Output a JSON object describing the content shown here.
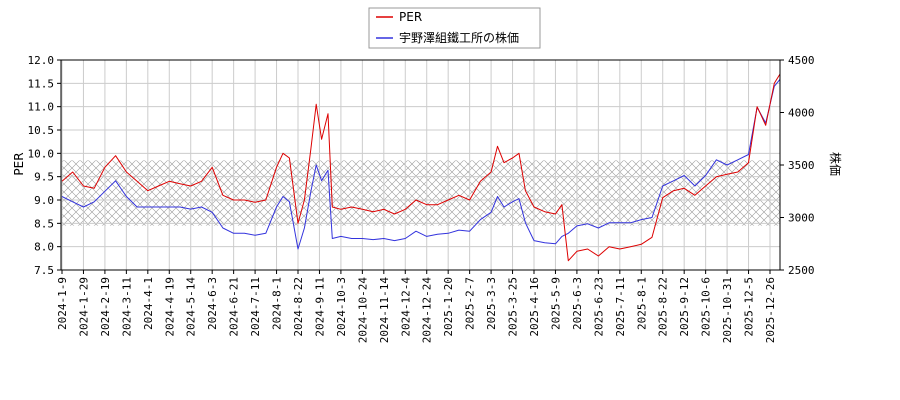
{
  "chart_data": {
    "type": "line",
    "legend": {
      "placement": "top-center",
      "entries": [
        "PER",
        "宇野澤組鐵工所の株価"
      ]
    },
    "colors": {
      "per": "#dd0000",
      "price": "#3333dd",
      "band_hatch": "#999999"
    },
    "y_left": {
      "label": "PER",
      "lim": [
        7.5,
        12.0
      ],
      "ticks": [
        "7.5",
        "8.0",
        "8.5",
        "9.0",
        "9.5",
        "10.0",
        "10.5",
        "11.0",
        "11.5",
        "12.0"
      ]
    },
    "y_right": {
      "label": "株価",
      "lim": [
        2500,
        4500
      ],
      "ticks": [
        "2500",
        "3000",
        "3500",
        "4000",
        "4500"
      ]
    },
    "x_ticks": [
      "2024-1-9",
      "2024-1-29",
      "2024-2-19",
      "2024-3-11",
      "2024-4-1",
      "2024-4-19",
      "2024-5-14",
      "2024-6-3",
      "2024-6-21",
      "2024-7-11",
      "2024-8-1",
      "2024-8-22",
      "2024-9-11",
      "2024-10-3",
      "2024-10-24",
      "2024-11-14",
      "2024-12-4",
      "2024-12-24",
      "2025-1-20",
      "2025-2-7",
      "2025-3-3",
      "2025-3-25",
      "2025-4-16",
      "2025-5-9",
      "2025-6-3",
      "2025-6-23",
      "2025-7-11",
      "2025-8-1",
      "2025-8-22",
      "2025-9-12",
      "2025-10-6",
      "2025-10-31",
      "2025-12-5",
      "2025-12-26"
    ],
    "per_band": [
      8.45,
      9.85
    ],
    "grid": true,
    "series": [
      {
        "name": "PER",
        "axis": "left",
        "points": [
          [
            0,
            9.4
          ],
          [
            0.5,
            9.6
          ],
          [
            1,
            9.3
          ],
          [
            1.5,
            9.25
          ],
          [
            2,
            9.7
          ],
          [
            2.5,
            9.95
          ],
          [
            3,
            9.6
          ],
          [
            3.5,
            9.4
          ],
          [
            4,
            9.2
          ],
          [
            4.5,
            9.3
          ],
          [
            5,
            9.4
          ],
          [
            5.5,
            9.35
          ],
          [
            6,
            9.3
          ],
          [
            6.5,
            9.4
          ],
          [
            7,
            9.7
          ],
          [
            7.5,
            9.1
          ],
          [
            8,
            9.0
          ],
          [
            8.5,
            9.0
          ],
          [
            9,
            8.95
          ],
          [
            9.5,
            9.0
          ],
          [
            10,
            9.7
          ],
          [
            10.3,
            10.0
          ],
          [
            10.6,
            9.9
          ],
          [
            11,
            8.5
          ],
          [
            11.3,
            9.0
          ],
          [
            11.6,
            10.1
          ],
          [
            11.85,
            11.05
          ],
          [
            12.1,
            10.3
          ],
          [
            12.4,
            10.85
          ],
          [
            12.6,
            8.85
          ],
          [
            13,
            8.8
          ],
          [
            13.5,
            8.85
          ],
          [
            14,
            8.8
          ],
          [
            14.5,
            8.75
          ],
          [
            15,
            8.8
          ],
          [
            15.5,
            8.7
          ],
          [
            16,
            8.8
          ],
          [
            16.5,
            9.0
          ],
          [
            17,
            8.9
          ],
          [
            17.5,
            8.9
          ],
          [
            18,
            9.0
          ],
          [
            18.5,
            9.1
          ],
          [
            19,
            9.0
          ],
          [
            19.5,
            9.4
          ],
          [
            20,
            9.6
          ],
          [
            20.3,
            10.15
          ],
          [
            20.6,
            9.8
          ],
          [
            21,
            9.9
          ],
          [
            21.3,
            10.0
          ],
          [
            21.6,
            9.2
          ],
          [
            22,
            8.85
          ],
          [
            22.5,
            8.75
          ],
          [
            23,
            8.7
          ],
          [
            23.3,
            8.9
          ],
          [
            23.6,
            7.7
          ],
          [
            24,
            7.9
          ],
          [
            24.5,
            7.95
          ],
          [
            25,
            7.8
          ],
          [
            25.5,
            8.0
          ],
          [
            26,
            7.95
          ],
          [
            26.5,
            8.0
          ],
          [
            27,
            8.05
          ],
          [
            27.5,
            8.2
          ],
          [
            28,
            9.05
          ],
          [
            28.5,
            9.2
          ],
          [
            29,
            9.25
          ],
          [
            29.5,
            9.1
          ],
          [
            30,
            9.3
          ],
          [
            30.5,
            9.5
          ],
          [
            31,
            9.55
          ],
          [
            31.5,
            9.6
          ],
          [
            32,
            9.8
          ],
          [
            32.4,
            11.0
          ],
          [
            32.8,
            10.6
          ],
          [
            33.2,
            11.5
          ],
          [
            33.6,
            11.8
          ]
        ]
      },
      {
        "name": "宇野澤組鐵工所の株価",
        "axis": "right",
        "points": [
          [
            0,
            3200
          ],
          [
            0.5,
            3150
          ],
          [
            1,
            3100
          ],
          [
            1.5,
            3150
          ],
          [
            2,
            3250
          ],
          [
            2.5,
            3350
          ],
          [
            3,
            3200
          ],
          [
            3.5,
            3100
          ],
          [
            4,
            3100
          ],
          [
            4.5,
            3100
          ],
          [
            5,
            3100
          ],
          [
            5.5,
            3100
          ],
          [
            6,
            3080
          ],
          [
            6.5,
            3100
          ],
          [
            7,
            3050
          ],
          [
            7.5,
            2900
          ],
          [
            8,
            2850
          ],
          [
            8.5,
            2850
          ],
          [
            9,
            2830
          ],
          [
            9.5,
            2850
          ],
          [
            10,
            3100
          ],
          [
            10.3,
            3200
          ],
          [
            10.6,
            3150
          ],
          [
            11,
            2700
          ],
          [
            11.3,
            2900
          ],
          [
            11.6,
            3250
          ],
          [
            11.85,
            3500
          ],
          [
            12.1,
            3350
          ],
          [
            12.4,
            3450
          ],
          [
            12.6,
            2800
          ],
          [
            13,
            2820
          ],
          [
            13.5,
            2800
          ],
          [
            14,
            2800
          ],
          [
            14.5,
            2790
          ],
          [
            15,
            2800
          ],
          [
            15.5,
            2780
          ],
          [
            16,
            2800
          ],
          [
            16.5,
            2870
          ],
          [
            17,
            2820
          ],
          [
            17.5,
            2840
          ],
          [
            18,
            2850
          ],
          [
            18.5,
            2880
          ],
          [
            19,
            2870
          ],
          [
            19.5,
            2980
          ],
          [
            20,
            3050
          ],
          [
            20.3,
            3200
          ],
          [
            20.6,
            3100
          ],
          [
            21,
            3150
          ],
          [
            21.3,
            3180
          ],
          [
            21.6,
            2950
          ],
          [
            22,
            2780
          ],
          [
            22.5,
            2760
          ],
          [
            23,
            2750
          ],
          [
            23.3,
            2820
          ],
          [
            23.6,
            2850
          ],
          [
            24,
            2920
          ],
          [
            24.5,
            2940
          ],
          [
            25,
            2900
          ],
          [
            25.5,
            2950
          ],
          [
            26,
            2950
          ],
          [
            26.5,
            2950
          ],
          [
            27,
            2980
          ],
          [
            27.5,
            3000
          ],
          [
            28,
            3300
          ],
          [
            28.5,
            3350
          ],
          [
            29,
            3400
          ],
          [
            29.5,
            3300
          ],
          [
            30,
            3400
          ],
          [
            30.5,
            3550
          ],
          [
            31,
            3500
          ],
          [
            31.5,
            3550
          ],
          [
            32,
            3600
          ],
          [
            32.4,
            4050
          ],
          [
            32.8,
            3900
          ],
          [
            33.2,
            4250
          ],
          [
            33.6,
            4350
          ]
        ]
      }
    ]
  }
}
